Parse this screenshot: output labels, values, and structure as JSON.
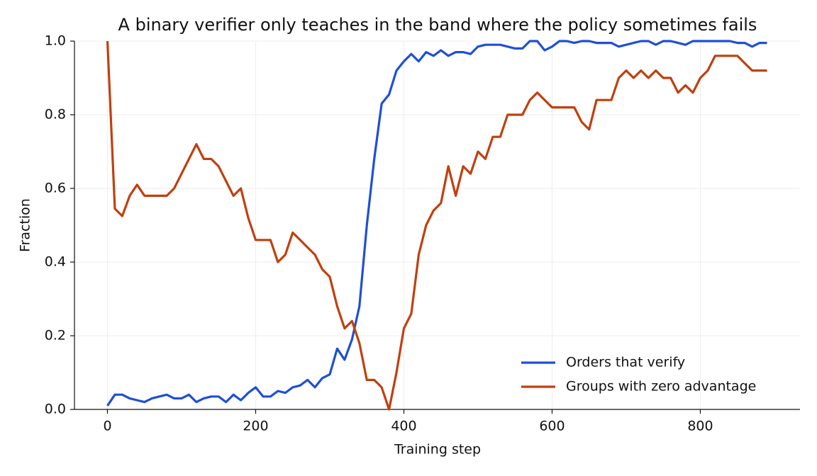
{
  "chart_data": {
    "type": "line",
    "title": "A binary verifier only teaches in the band where the policy sometimes fails",
    "xlabel": "Training step",
    "ylabel": "Fraction",
    "x": [
      0,
      10,
      20,
      30,
      40,
      50,
      60,
      70,
      80,
      90,
      100,
      110,
      120,
      130,
      140,
      150,
      160,
      170,
      180,
      190,
      200,
      210,
      220,
      230,
      240,
      250,
      260,
      270,
      280,
      290,
      300,
      310,
      320,
      330,
      340,
      350,
      360,
      370,
      380,
      390,
      400,
      410,
      420,
      430,
      440,
      450,
      460,
      470,
      480,
      490,
      500,
      510,
      520,
      530,
      540,
      550,
      560,
      570,
      580,
      590,
      600,
      610,
      620,
      630,
      640,
      650,
      660,
      670,
      680,
      690,
      700,
      710,
      720,
      730,
      740,
      750,
      760,
      770,
      780,
      790,
      800,
      810,
      820,
      830,
      840,
      850,
      860,
      870,
      880,
      890
    ],
    "series": [
      {
        "name": "Orders that verify",
        "color": "#1f4fd6",
        "values": [
          0.01,
          0.04,
          0.04,
          0.03,
          0.025,
          0.02,
          0.03,
          0.035,
          0.04,
          0.03,
          0.03,
          0.04,
          0.02,
          0.03,
          0.035,
          0.035,
          0.02,
          0.04,
          0.025,
          0.045,
          0.06,
          0.035,
          0.035,
          0.05,
          0.045,
          0.06,
          0.065,
          0.08,
          0.06,
          0.085,
          0.095,
          0.165,
          0.135,
          0.19,
          0.28,
          0.5,
          0.68,
          0.83,
          0.855,
          0.92,
          0.945,
          0.965,
          0.945,
          0.97,
          0.96,
          0.975,
          0.96,
          0.97,
          0.97,
          0.965,
          0.985,
          0.99,
          0.99,
          0.99,
          0.985,
          0.98,
          0.98,
          1.0,
          1.0,
          0.975,
          0.985,
          1.0,
          1.0,
          0.995,
          1.0,
          1.0,
          0.995,
          0.995,
          0.995,
          0.985,
          0.99,
          0.995,
          1.0,
          1.0,
          0.99,
          1.0,
          1.0,
          0.995,
          0.99,
          1.0,
          1.0,
          1.0,
          1.0,
          1.0,
          1.0,
          0.995,
          0.995,
          0.985,
          0.995,
          0.995
        ]
      },
      {
        "name": "Groups with zero advantage",
        "color": "#c0400f",
        "values": [
          1.0,
          0.545,
          0.525,
          0.58,
          0.61,
          0.58,
          0.58,
          0.58,
          0.58,
          0.6,
          0.64,
          0.68,
          0.72,
          0.68,
          0.68,
          0.66,
          0.62,
          0.58,
          0.6,
          0.52,
          0.46,
          0.46,
          0.46,
          0.4,
          0.42,
          0.48,
          0.46,
          0.44,
          0.42,
          0.38,
          0.36,
          0.28,
          0.22,
          0.24,
          0.18,
          0.08,
          0.08,
          0.06,
          0.0,
          0.1,
          0.22,
          0.26,
          0.42,
          0.5,
          0.54,
          0.56,
          0.66,
          0.58,
          0.66,
          0.64,
          0.7,
          0.68,
          0.74,
          0.74,
          0.8,
          0.8,
          0.8,
          0.84,
          0.86,
          0.84,
          0.82,
          0.82,
          0.82,
          0.82,
          0.78,
          0.76,
          0.84,
          0.84,
          0.84,
          0.9,
          0.92,
          0.9,
          0.92,
          0.9,
          0.92,
          0.9,
          0.9,
          0.86,
          0.88,
          0.86,
          0.9,
          0.92,
          0.96,
          0.96,
          0.96,
          0.96,
          0.94,
          0.92,
          0.92,
          0.92
        ]
      }
    ],
    "xlim": [
      -44.5,
      934.5
    ],
    "xticks": [
      0,
      200,
      400,
      600,
      800
    ],
    "ylim": [
      0,
      1
    ],
    "yticks": [
      {
        "value": 0,
        "label": "0.0"
      },
      0.2,
      0.4,
      0.6,
      0.8,
      {
        "value": 1,
        "label": "1.0"
      }
    ],
    "grid": true,
    "legend": "lower right"
  }
}
